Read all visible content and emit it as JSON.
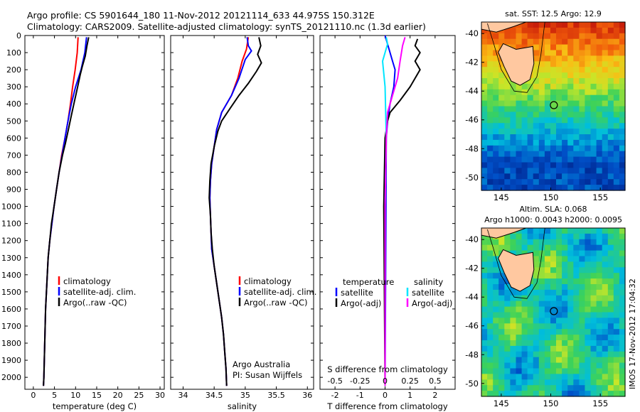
{
  "header": {
    "line1": "Argo profile: CS 5901644_180 11-Nov-2012 20121114_633 44.975S 150.312E",
    "line2": "Climatology: CARS2009. Satellite-adjusted climatology: synTS_20121110.nc (1.3d earlier)"
  },
  "side_stamp": "IMOS 17-Nov-2012 17:04:32",
  "colors": {
    "red": "#ff0000",
    "blue": "#0000ff",
    "black": "#000000",
    "cyan": "#00e5ff",
    "magenta": "#ff00ff"
  },
  "chart_data": [
    {
      "type": "line",
      "xlabel": "temperature (deg C)",
      "ylabel": "",
      "xlim": [
        -2,
        31
      ],
      "ylim": [
        2070,
        0
      ],
      "xticks": [
        0,
        5,
        10,
        15,
        20,
        25,
        30
      ],
      "yticks": [
        0,
        100,
        200,
        300,
        400,
        500,
        600,
        700,
        800,
        900,
        1000,
        1100,
        1200,
        1300,
        1400,
        1500,
        1600,
        1700,
        1800,
        1900,
        2000
      ],
      "legend": [
        "climatology",
        "satellite-adj. clim.",
        "Argo(..raw -QC)"
      ],
      "series": [
        {
          "name": "climatology",
          "color": "red",
          "points": [
            [
              10.6,
              10
            ],
            [
              10.4,
              100
            ],
            [
              9.9,
              200
            ],
            [
              9.3,
              300
            ],
            [
              8.8,
              400
            ],
            [
              8.2,
              500
            ],
            [
              7.5,
              600
            ],
            [
              6.7,
              700
            ],
            [
              6.1,
              800
            ],
            [
              5.5,
              900
            ],
            [
              4.9,
              1000
            ],
            [
              4.4,
              1100
            ],
            [
              3.9,
              1200
            ],
            [
              3.5,
              1300
            ],
            [
              3.3,
              1400
            ],
            [
              3.1,
              1500
            ],
            [
              2.9,
              1600
            ],
            [
              2.8,
              1700
            ],
            [
              2.7,
              1800
            ],
            [
              2.6,
              1900
            ],
            [
              2.5,
              2000
            ],
            [
              2.4,
              2050
            ]
          ]
        },
        {
          "name": "satellite-adj. clim.",
          "color": "blue",
          "points": [
            [
              12.6,
              10
            ],
            [
              12.2,
              100
            ],
            [
              11.3,
              200
            ],
            [
              10.0,
              300
            ],
            [
              9.0,
              400
            ],
            [
              8.2,
              500
            ],
            [
              7.5,
              600
            ],
            [
              6.8,
              700
            ],
            [
              6.1,
              800
            ],
            [
              5.5,
              900
            ],
            [
              4.9,
              1000
            ],
            [
              4.4,
              1100
            ],
            [
              3.9,
              1200
            ],
            [
              3.5,
              1300
            ],
            [
              3.3,
              1400
            ],
            [
              3.1,
              1500
            ],
            [
              2.9,
              1600
            ],
            [
              2.8,
              1700
            ],
            [
              2.7,
              1800
            ],
            [
              2.6,
              1900
            ],
            [
              2.5,
              2000
            ],
            [
              2.4,
              2050
            ]
          ]
        },
        {
          "name": "Argo(..raw -QC)",
          "color": "black",
          "points": [
            [
              13.1,
              10
            ],
            [
              12.7,
              60
            ],
            [
              12.3,
              120
            ],
            [
              11.6,
              180
            ],
            [
              11.1,
              230
            ],
            [
              10.5,
              300
            ],
            [
              9.6,
              400
            ],
            [
              8.9,
              480
            ],
            [
              8.3,
              550
            ],
            [
              7.6,
              630
            ],
            [
              6.9,
              700
            ],
            [
              6.1,
              800
            ],
            [
              5.5,
              900
            ],
            [
              4.9,
              1000
            ],
            [
              4.3,
              1100
            ],
            [
              3.9,
              1200
            ],
            [
              3.5,
              1300
            ],
            [
              3.3,
              1400
            ],
            [
              3.1,
              1500
            ],
            [
              2.9,
              1600
            ],
            [
              2.8,
              1700
            ],
            [
              2.7,
              1800
            ],
            [
              2.6,
              1900
            ],
            [
              2.5,
              2000
            ],
            [
              2.4,
              2050
            ]
          ]
        }
      ]
    },
    {
      "type": "line",
      "xlabel": "salinity",
      "ylabel": "",
      "xlim": [
        33.8,
        36.1
      ],
      "ylim": [
        2070,
        0
      ],
      "xticks": [
        34,
        34.5,
        35,
        35.5,
        36
      ],
      "legend": [
        "climatology",
        "satellite-adj. clim.",
        "Argo(..raw -QC)"
      ],
      "annotation": [
        "Argo Australia",
        "PI: Susan Wijffels"
      ],
      "series": [
        {
          "name": "climatology",
          "color": "red",
          "points": [
            [
              35.05,
              10
            ],
            [
              35.02,
              80
            ],
            [
              34.95,
              150
            ],
            [
              34.88,
              250
            ],
            [
              34.78,
              350
            ],
            [
              34.62,
              450
            ],
            [
              34.54,
              550
            ],
            [
              34.5,
              650
            ],
            [
              34.46,
              750
            ],
            [
              34.44,
              850
            ],
            [
              34.43,
              950
            ],
            [
              34.44,
              1050
            ],
            [
              34.45,
              1150
            ],
            [
              34.46,
              1250
            ],
            [
              34.5,
              1350
            ],
            [
              34.54,
              1450
            ],
            [
              34.58,
              1550
            ],
            [
              34.62,
              1650
            ],
            [
              34.65,
              1750
            ],
            [
              34.67,
              1850
            ],
            [
              34.69,
              1950
            ],
            [
              34.7,
              2050
            ]
          ]
        },
        {
          "name": "satellite-adj. clim.",
          "color": "blue",
          "points": [
            [
              35.03,
              10
            ],
            [
              35.05,
              60
            ],
            [
              35.1,
              90
            ],
            [
              35.0,
              140
            ],
            [
              34.9,
              250
            ],
            [
              34.78,
              350
            ],
            [
              34.62,
              450
            ],
            [
              34.54,
              550
            ],
            [
              34.5,
              650
            ],
            [
              34.46,
              750
            ],
            [
              34.44,
              850
            ],
            [
              34.43,
              950
            ],
            [
              34.44,
              1050
            ],
            [
              34.45,
              1150
            ],
            [
              34.46,
              1250
            ],
            [
              34.5,
              1350
            ],
            [
              34.54,
              1450
            ],
            [
              34.58,
              1550
            ],
            [
              34.62,
              1650
            ],
            [
              34.65,
              1750
            ],
            [
              34.67,
              1850
            ],
            [
              34.69,
              1950
            ],
            [
              34.7,
              2050
            ]
          ]
        },
        {
          "name": "Argo(..raw -QC)",
          "color": "black",
          "points": [
            [
              35.22,
              10
            ],
            [
              35.25,
              60
            ],
            [
              35.2,
              110
            ],
            [
              35.26,
              160
            ],
            [
              35.18,
              210
            ],
            [
              35.05,
              280
            ],
            [
              34.9,
              350
            ],
            [
              34.75,
              430
            ],
            [
              34.62,
              500
            ],
            [
              34.56,
              560
            ],
            [
              34.5,
              650
            ],
            [
              34.45,
              750
            ],
            [
              34.43,
              850
            ],
            [
              34.42,
              950
            ],
            [
              34.44,
              1050
            ],
            [
              34.45,
              1150
            ],
            [
              34.47,
              1250
            ],
            [
              34.5,
              1350
            ],
            [
              34.54,
              1450
            ],
            [
              34.58,
              1550
            ],
            [
              34.62,
              1650
            ],
            [
              34.65,
              1750
            ],
            [
              34.67,
              1850
            ],
            [
              34.69,
              1950
            ],
            [
              34.7,
              2050
            ]
          ]
        }
      ]
    },
    {
      "type": "line",
      "xlabel": "T difference from climatology",
      "x2label": "S difference from climatology",
      "xlim": [
        -2.6,
        2.8
      ],
      "ylim": [
        2070,
        0
      ],
      "xticks": [
        -2,
        -1,
        0,
        1,
        2
      ],
      "x2ticks": [
        [
          "-0.5",
          -2
        ],
        [
          "-0.25",
          -1
        ],
        [
          "0",
          0
        ],
        [
          "0.25",
          1
        ],
        [
          "0.5",
          2
        ]
      ],
      "legend": {
        "temperature": [
          "satellite",
          "Argo(-adj)"
        ],
        "salinity": [
          "satellite",
          "Argo(-adj)"
        ]
      },
      "series": [
        {
          "name": "temperature satellite",
          "color": "blue",
          "points": [
            [
              0,
              0
            ],
            [
              0.2,
              100
            ],
            [
              0.3,
              150
            ],
            [
              0.4,
              200
            ],
            [
              0.35,
              300
            ],
            [
              0.2,
              400
            ],
            [
              0.1,
              500
            ],
            [
              0.05,
              600
            ],
            [
              0,
              2050
            ]
          ]
        },
        {
          "name": "temperature Argo(-adj)",
          "color": "black",
          "points": [
            [
              1.3,
              20
            ],
            [
              1.2,
              60
            ],
            [
              1.4,
              100
            ],
            [
              1.2,
              150
            ],
            [
              1.4,
              200
            ],
            [
              1.0,
              300
            ],
            [
              0.6,
              380
            ],
            [
              0.2,
              450
            ],
            [
              0.1,
              500
            ],
            [
              0.0,
              600
            ],
            [
              -0.05,
              1000
            ],
            [
              0.0,
              2050
            ]
          ]
        },
        {
          "name": "salinity satellite",
          "color": "cyan",
          "points": [
            [
              0.05,
              10
            ],
            [
              0.1,
              50
            ],
            [
              -0.1,
              150
            ],
            [
              0.0,
              300
            ],
            [
              0.05,
              600
            ],
            [
              0,
              1000
            ],
            [
              0,
              2050
            ]
          ]
        },
        {
          "name": "salinity Argo(-adj)",
          "color": "magenta",
          "points": [
            [
              0.8,
              10
            ],
            [
              0.7,
              60
            ],
            [
              0.6,
              150
            ],
            [
              0.5,
              250
            ],
            [
              0.3,
              350
            ],
            [
              0.1,
              450
            ],
            [
              0.05,
              600
            ],
            [
              0,
              1000
            ],
            [
              0,
              2050
            ]
          ]
        }
      ]
    },
    {
      "type": "heatmap",
      "title": "sat. SST: 12.5 Argo: 12.9",
      "xticks": [
        145,
        150,
        155
      ],
      "yticks": [
        -40,
        -42,
        -44,
        -46,
        -48,
        -50
      ],
      "xlim": [
        143,
        157.5
      ],
      "ylim": [
        -50.9,
        -39.2
      ]
    },
    {
      "type": "heatmap",
      "title_lines": [
        "Altim. SLA: 0.068",
        "Argo h1000: 0.0043 h2000: 0.0095"
      ],
      "xticks": [
        145,
        150,
        155
      ],
      "yticks": [
        -40,
        -42,
        -44,
        -46,
        -48,
        -50
      ],
      "xlim": [
        143,
        157.5
      ],
      "ylim": [
        -50.9,
        -39.2
      ]
    }
  ]
}
